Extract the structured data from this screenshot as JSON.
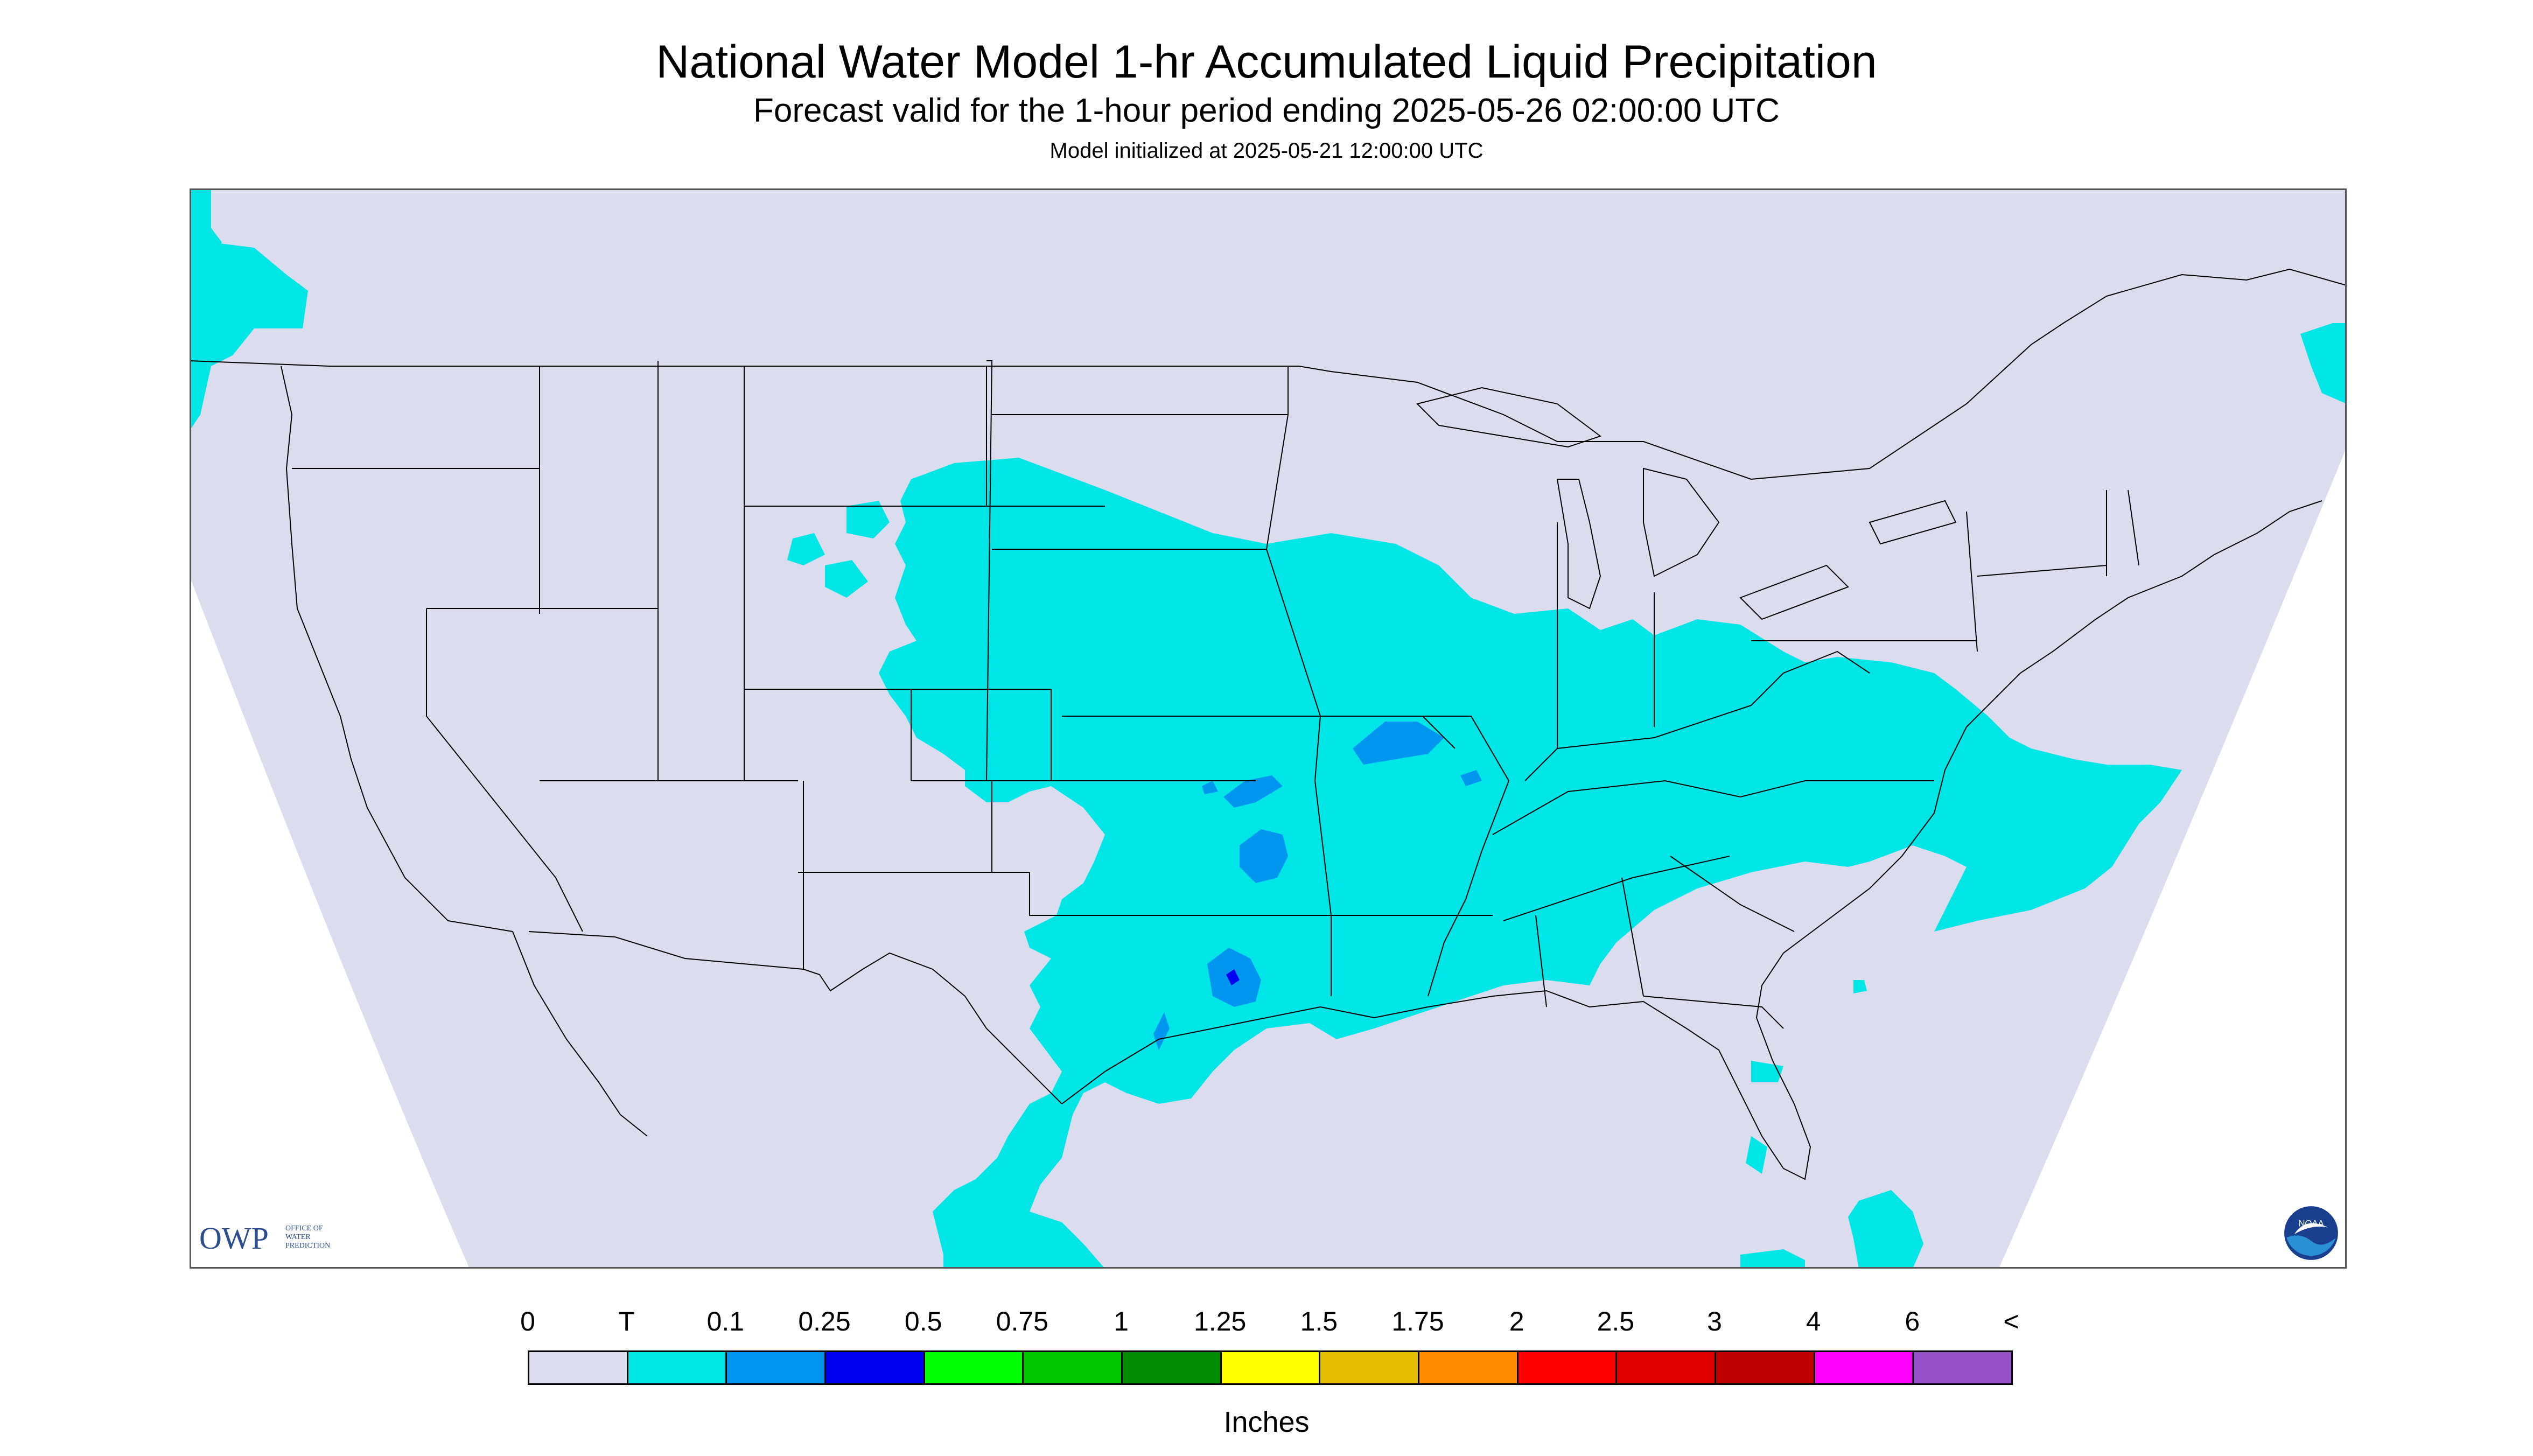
{
  "header": {
    "title": "National Water Model 1-hr Accumulated Liquid Precipitation",
    "subtitle": "Forecast valid for the 1-hour period ending 2025-05-26 02:00:00 UTC",
    "init": "Model initialized at 2025-05-21 12:00:00 UTC"
  },
  "map": {
    "background_color": "#dcdcef",
    "outside_color": "#ffffff",
    "border_color": "#000000",
    "projection": "lambert-conformal",
    "region": "CONUS",
    "precip_features": [
      {
        "region": "Pacific Northwest",
        "category": "T"
      },
      {
        "region": "Central Plains / Midwest",
        "category": "T"
      },
      {
        "region": "Ohio Valley / Mid-Atlantic",
        "category": "T"
      },
      {
        "region": "Texas / Lower Mississippi",
        "category": "T"
      },
      {
        "region": "Oklahoma / Kansas",
        "category": "0.1"
      },
      {
        "region": "North-central Texas",
        "category": "0.25"
      },
      {
        "region": "South Texas / NE Mexico",
        "category": "T"
      },
      {
        "region": "Gulf of Maine",
        "category": "T"
      }
    ]
  },
  "logos": {
    "owp": {
      "text": "OWP",
      "sub": [
        "OFFICE OF",
        "WATER",
        "PREDICTION"
      ],
      "icon": "owp-logo"
    },
    "noaa": {
      "text": "NOAA",
      "icon": "noaa-logo"
    }
  },
  "legend": {
    "units": "Inches",
    "labels": [
      "0",
      "T",
      "0.1",
      "0.25",
      "0.5",
      "0.75",
      "1",
      "1.25",
      "1.5",
      "1.75",
      "2",
      "2.5",
      "3",
      "4",
      "6",
      "<"
    ],
    "colors": [
      "#dcdcef",
      "#00e6e6",
      "#0096f0",
      "#0000f0",
      "#00ff00",
      "#00c800",
      "#008c00",
      "#ffff00",
      "#e6be00",
      "#ff8c00",
      "#ff0000",
      "#e10000",
      "#be0000",
      "#ff00ff",
      "#9650c8"
    ]
  }
}
